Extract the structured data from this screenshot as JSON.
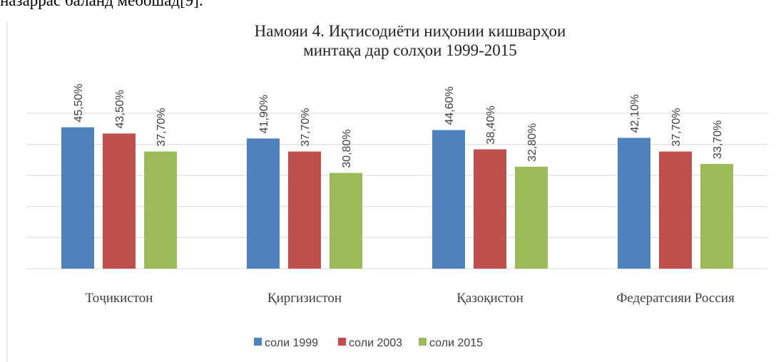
{
  "text_above": "назаррас баланд мебошад[9].",
  "chart_data": {
    "type": "bar",
    "title": "Намояи 4. Иқтисодиёти ниҳонии кишварҳои минтақа дар солҳои 1999-2015",
    "categories": [
      "Тоҷикистон",
      "Қиргизистон",
      "Қазоқистон",
      "Федератсияи Россия"
    ],
    "series": [
      {
        "name": "соли 1999",
        "color": "#4f81bd",
        "values": [
          45.5,
          41.9,
          44.6,
          42.1
        ],
        "value_labels": [
          "45,50%",
          "41,90%",
          "44,60%",
          "42,10%"
        ]
      },
      {
        "name": "соли 2003",
        "color": "#c0504d",
        "values": [
          43.5,
          37.7,
          38.4,
          37.7
        ],
        "value_labels": [
          "43,50%",
          "37,70%",
          "38,40%",
          "37,70%"
        ]
      },
      {
        "name": "соли 2015",
        "color": "#9bbb59",
        "values": [
          37.7,
          30.8,
          32.8,
          33.7
        ],
        "value_labels": [
          "37,70%",
          "30,80%",
          "32,80%",
          "33,70%"
        ]
      }
    ],
    "ylim": [
      0,
      50
    ],
    "yticks": [
      0,
      10,
      20,
      30,
      40,
      50
    ],
    "grid": true,
    "legend": "bottom"
  }
}
